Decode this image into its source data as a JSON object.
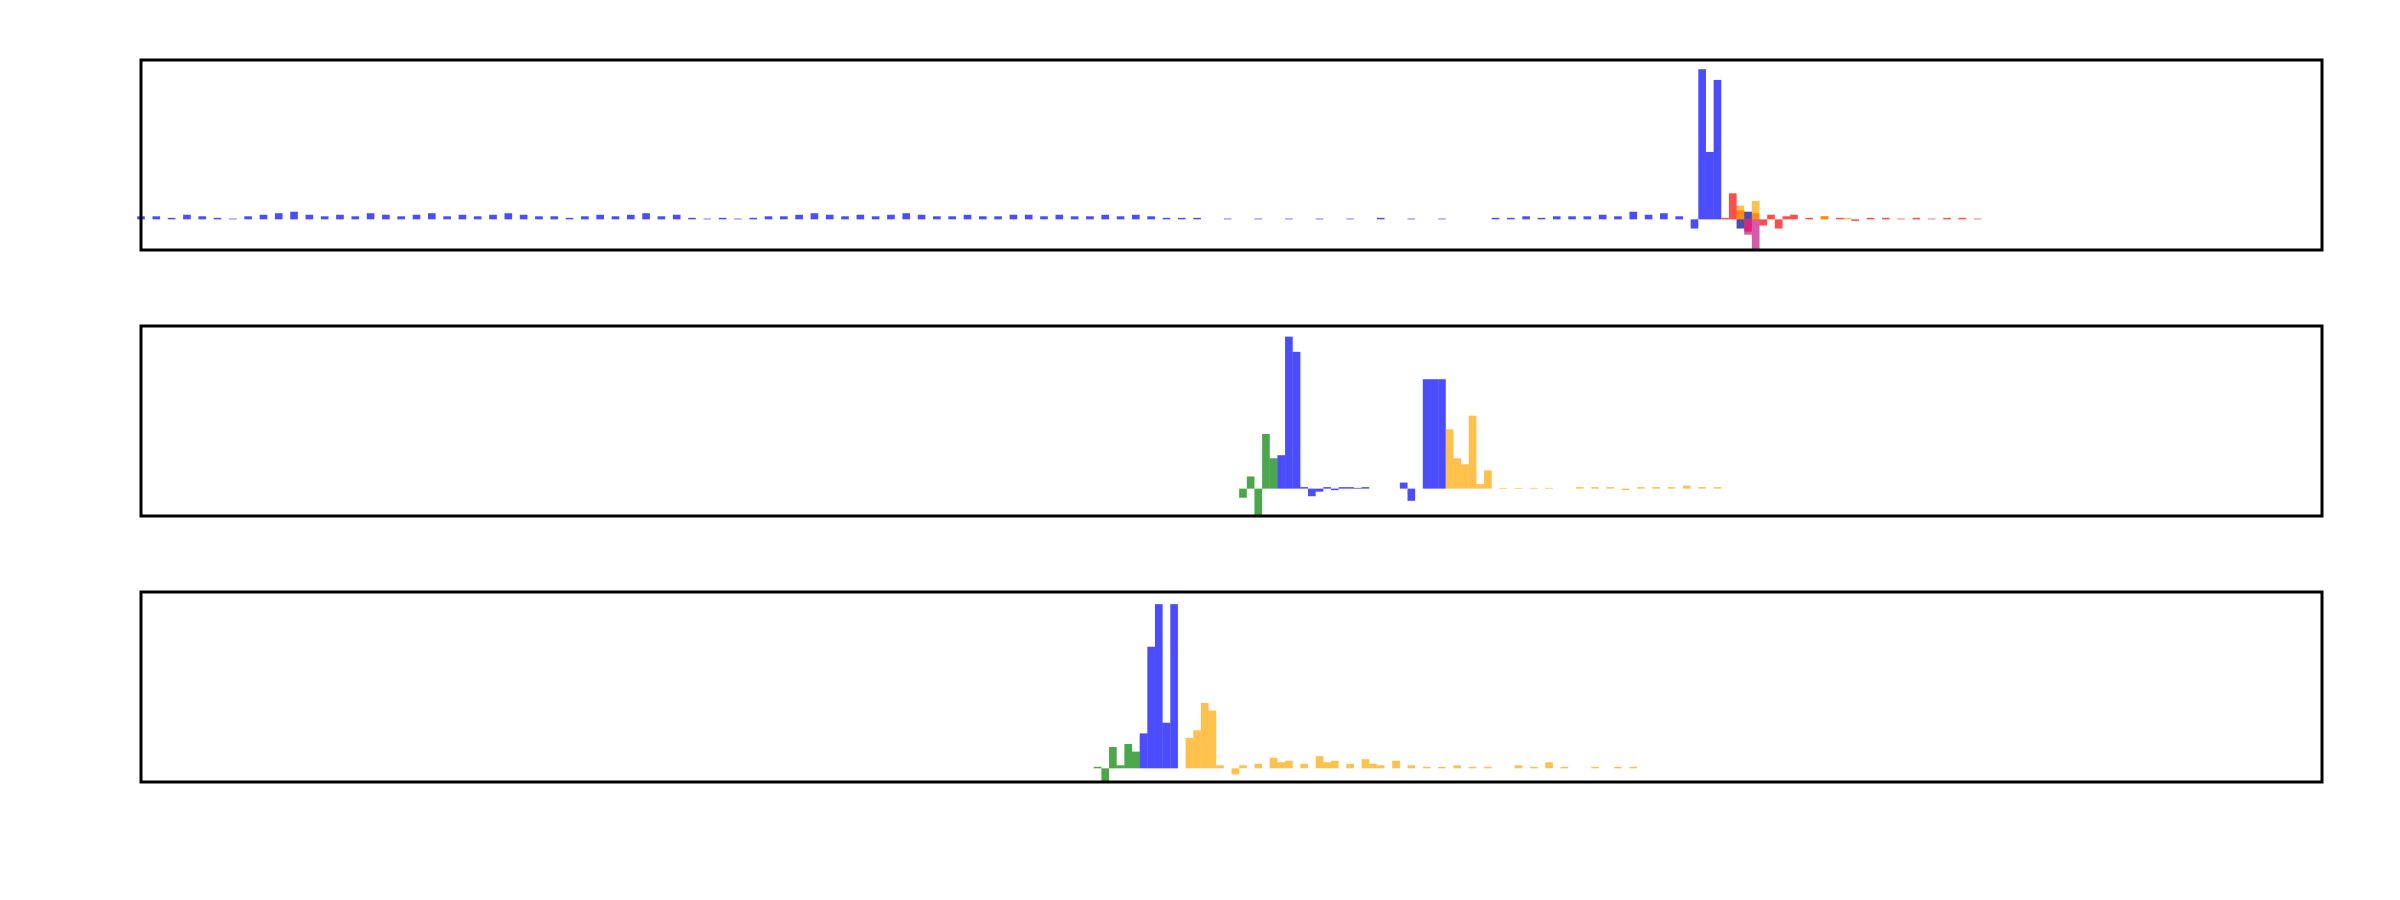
{
  "chart_data": [
    {
      "type": "bar",
      "xlim": [
        0,
        285
      ],
      "ylim": [
        -20,
        104
      ],
      "bar_opacity": 0.7,
      "series": [
        {
          "color": "#0000ff",
          "x": [
            0,
            2,
            4,
            6,
            8,
            10,
            12,
            14,
            16,
            18,
            20,
            22,
            24,
            26,
            28,
            30,
            32,
            34,
            36,
            38,
            40,
            42,
            44,
            46,
            48,
            50,
            52,
            54,
            56,
            58,
            60,
            62,
            64,
            66,
            68,
            70,
            72,
            74,
            76,
            78,
            80,
            82,
            84,
            86,
            88,
            90,
            92,
            94,
            96,
            98,
            100,
            102,
            104,
            106,
            108,
            110,
            112,
            114,
            116,
            118,
            120,
            122,
            124,
            126,
            128,
            130,
            132,
            134,
            136,
            138,
            142,
            146,
            150,
            154,
            158,
            162,
            166,
            170,
            177,
            179,
            181,
            183,
            185,
            187,
            189,
            191,
            193,
            195,
            197,
            199,
            201,
            203,
            204,
            205,
            206
          ],
          "values": [
            2,
            2,
            1,
            3,
            2,
            1,
            0.5,
            2,
            3,
            4,
            5,
            3,
            2,
            3,
            2,
            4,
            3,
            2,
            3,
            4,
            2,
            3,
            2,
            3,
            4,
            3,
            2,
            2,
            1,
            2,
            3,
            2,
            3,
            4,
            2,
            3,
            1,
            0.5,
            1,
            0.5,
            1,
            2,
            2,
            3,
            4,
            3,
            2,
            3,
            2,
            3,
            4,
            3,
            2,
            2,
            3,
            2,
            2,
            3,
            3,
            2,
            3,
            2,
            2,
            3,
            2,
            3,
            2,
            1,
            1,
            1,
            0.5,
            0.5,
            0.5,
            0.5,
            0.5,
            1,
            0.5,
            0.5,
            1,
            1,
            2,
            1,
            2,
            2,
            2,
            3,
            2,
            5,
            3,
            4,
            2,
            -6,
            98,
            44,
            91
          ]
        },
        {
          "color": "#ff0000",
          "x": [
            207,
            208,
            209,
            210,
            211,
            212,
            213,
            214,
            215,
            216,
            218,
            220,
            222,
            224,
            226,
            228,
            230,
            232,
            234,
            236,
            238,
            240
          ],
          "values": [
            1,
            17,
            6,
            -8,
            4,
            -4,
            3,
            -6,
            2,
            3,
            1,
            2,
            1,
            -1,
            1,
            1,
            0.5,
            1,
            0.5,
            1,
            1,
            0.5
          ]
        },
        {
          "color": "#ffa500",
          "x": [
            209,
            211,
            220,
            223
          ],
          "values": [
            9,
            12,
            2,
            1
          ]
        },
        {
          "color": "#c71585",
          "x": [
            210,
            211
          ],
          "values": [
            -10,
            -20
          ]
        },
        {
          "color": "#00008b",
          "x": [
            209,
            210
          ],
          "values": [
            -6,
            5
          ]
        }
      ]
    },
    {
      "type": "bar",
      "xlim": [
        0,
        285
      ],
      "ylim": [
        -18,
        107
      ],
      "bar_opacity": 0.7,
      "series": [
        {
          "color": "#008000",
          "x": [
            144,
            145,
            146,
            147,
            148
          ],
          "values": [
            -6,
            8,
            -17,
            36,
            20
          ]
        },
        {
          "color": "#0000ff",
          "x": [
            149,
            150,
            151,
            152,
            153,
            154,
            155,
            156,
            157,
            158,
            159,
            160,
            165,
            166,
            168,
            169,
            170
          ],
          "values": [
            22,
            100,
            90,
            1,
            -5,
            -2,
            1,
            -1,
            1,
            1,
            0.5,
            1,
            4,
            -8,
            72,
            72,
            72
          ]
        },
        {
          "color": "#ffa500",
          "x": [
            171,
            172,
            173,
            174,
            175,
            176,
            178,
            180,
            182,
            184,
            188,
            190,
            192,
            194,
            196,
            198,
            200,
            202,
            204,
            206
          ],
          "values": [
            39,
            20,
            16,
            48,
            3,
            12,
            0.5,
            0.5,
            0.5,
            0.5,
            1,
            1,
            1,
            -1,
            1,
            1,
            1,
            2,
            1,
            1
          ]
        }
      ]
    },
    {
      "type": "bar",
      "xlim": [
        0,
        285
      ],
      "ylim": [
        -9,
        116
      ],
      "bar_opacity": 0.7,
      "series": [
        {
          "color": "#008000",
          "x": [
            125,
            126,
            127,
            128,
            129,
            130
          ],
          "values": [
            1,
            -9,
            14,
            2,
            16,
            11
          ]
        },
        {
          "color": "#0000ff",
          "x": [
            131,
            132,
            133,
            134,
            135
          ],
          "values": [
            23,
            80,
            108,
            30,
            108
          ]
        },
        {
          "color": "#ffa500",
          "x": [
            137,
            138,
            139,
            140,
            141,
            143,
            144,
            146,
            148,
            149,
            150,
            152,
            154,
            155,
            156,
            158,
            160,
            161,
            162,
            164,
            166,
            168,
            170,
            172,
            174,
            176,
            180,
            182,
            184,
            186,
            190,
            193,
            195
          ],
          "values": [
            20,
            25,
            43,
            38,
            2,
            -4,
            2,
            3,
            7,
            4,
            5,
            3,
            8,
            4,
            5,
            3,
            6,
            3,
            2,
            5,
            2,
            1,
            1,
            2,
            1,
            1,
            2,
            1,
            4,
            1,
            1,
            1,
            1
          ]
        }
      ]
    }
  ]
}
